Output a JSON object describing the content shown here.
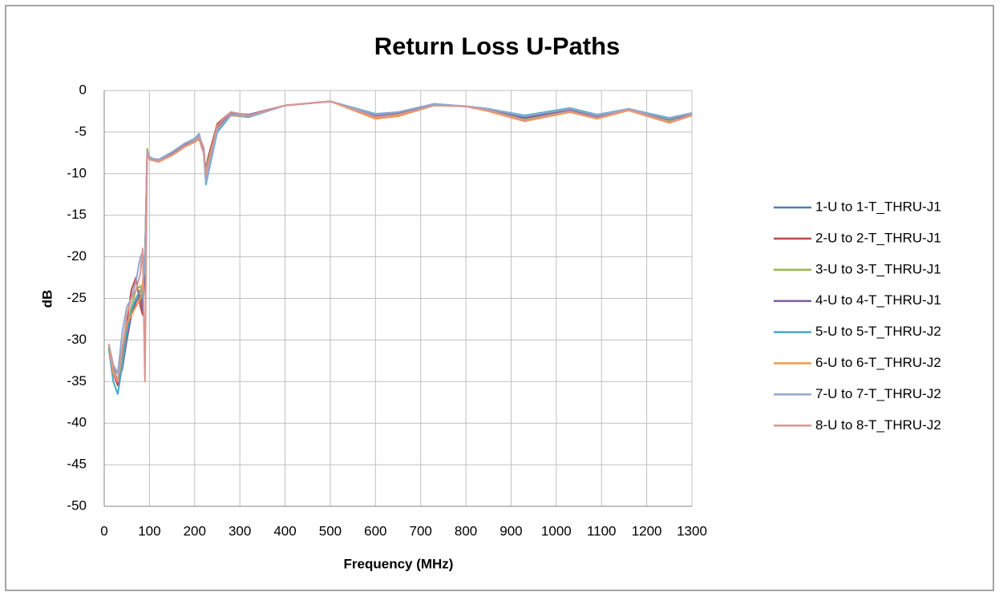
{
  "chart_data": {
    "type": "line",
    "title": "Return Loss U-Paths",
    "x_label": "Frequency (MHz)",
    "y_label": "dB",
    "x": [
      10,
      20,
      30,
      40,
      50,
      60,
      70,
      80,
      85,
      90,
      95,
      100,
      120,
      150,
      180,
      200,
      210,
      220,
      225,
      230,
      250,
      280,
      320,
      400,
      500,
      600,
      650,
      730,
      800,
      850,
      930,
      1030,
      1090,
      1160,
      1250,
      1300
    ],
    "series": [
      {
        "name": "1-U to 1-T_THRU-J1",
        "color": "#4a7ebb",
        "values": [
          -30.5,
          -33,
          -35,
          -33,
          -30,
          -27,
          -25,
          -24,
          -26,
          -20,
          -7.5,
          -8,
          -8.5,
          -7.5,
          -6.5,
          -6,
          -5.5,
          -7,
          -10,
          -9,
          -4.5,
          -2.7,
          -2.9,
          -1.8,
          -1.3,
          -2.9,
          -2.6,
          -1.7,
          -1.9,
          -2.2,
          -3.2,
          -2.2,
          -3.1,
          -2.2,
          -3.5,
          -2.8
        ]
      },
      {
        "name": "2-U to 2-T_THRU-J1",
        "color": "#be4b48",
        "values": [
          -31,
          -34,
          -35.5,
          -32,
          -28,
          -24,
          -22.5,
          -26,
          -27,
          -22,
          -7.3,
          -8.2,
          -8.4,
          -7.8,
          -6.7,
          -6.2,
          -5.8,
          -7.5,
          -9.5,
          -8,
          -4,
          -2.6,
          -3,
          -1.8,
          -1.3,
          -3.2,
          -2.9,
          -1.8,
          -1.9,
          -2.4,
          -3.5,
          -2.5,
          -3.3,
          -2.3,
          -3.7,
          -2.9
        ]
      },
      {
        "name": "3-U to 3-T_THRU-J1",
        "color": "#98b954",
        "values": [
          -30.8,
          -33.5,
          -34.8,
          -32.5,
          -29,
          -26,
          -24,
          -23.5,
          -25,
          -21,
          -7,
          -8.1,
          -8.5,
          -7.6,
          -6.6,
          -6.1,
          -5.6,
          -7.2,
          -9.8,
          -8.5,
          -4.3,
          -2.7,
          -3,
          -1.8,
          -1.3,
          -3.1,
          -2.8,
          -1.7,
          -1.9,
          -2.3,
          -3.4,
          -2.4,
          -3.2,
          -2.3,
          -3.6,
          -2.9
        ]
      },
      {
        "name": "4-U to 4-T_THRU-J1",
        "color": "#7d60a0",
        "values": [
          -31,
          -34,
          -35,
          -33.5,
          -30,
          -27,
          -25.5,
          -24.5,
          -26.5,
          -21,
          -7.6,
          -8.1,
          -8.5,
          -7.6,
          -6.5,
          -6,
          -5.5,
          -7,
          -10,
          -9,
          -4.5,
          -2.7,
          -2.9,
          -1.8,
          -1.3,
          -3,
          -2.7,
          -1.7,
          -1.9,
          -2.2,
          -3.3,
          -2.3,
          -3.1,
          -2.2,
          -3.5,
          -2.8
        ]
      },
      {
        "name": "5-U to 5-T_THRU-J2",
        "color": "#46aac5",
        "values": [
          -31,
          -35,
          -36.5,
          -33,
          -29,
          -26.5,
          -25,
          -24,
          -25,
          -20,
          -7.8,
          -8.2,
          -8.4,
          -7.4,
          -6.3,
          -5.8,
          -5.2,
          -7.5,
          -11.3,
          -10,
          -5,
          -3,
          -3.2,
          -1.8,
          -1.3,
          -2.8,
          -2.6,
          -1.6,
          -1.9,
          -2.2,
          -3,
          -2.1,
          -2.9,
          -2.2,
          -3.3,
          -2.7
        ]
      },
      {
        "name": "6-U to 6-T_THRU-J2",
        "color": "#f79646",
        "values": [
          -30.5,
          -34,
          -35,
          -31,
          -28,
          -27,
          -26,
          -25,
          -23,
          -21,
          -7.4,
          -8.3,
          -8.6,
          -7.8,
          -6.7,
          -6.2,
          -5.7,
          -7.3,
          -10.5,
          -9.5,
          -4.6,
          -3,
          -3.1,
          -1.8,
          -1.3,
          -3.4,
          -3.1,
          -1.8,
          -1.9,
          -2.5,
          -3.7,
          -2.6,
          -3.4,
          -2.4,
          -3.9,
          -3
        ]
      },
      {
        "name": "7-U to 7-T_THRU-J2",
        "color": "#92a9cf",
        "values": [
          -30.5,
          -33,
          -34,
          -29,
          -26,
          -25,
          -23,
          -20,
          -19.5,
          -22,
          -7.2,
          -8.1,
          -8.3,
          -7.4,
          -6.3,
          -5.9,
          -5.3,
          -7.4,
          -11,
          -9.8,
          -4.8,
          -2.9,
          -3.1,
          -1.8,
          -1.3,
          -2.9,
          -2.6,
          -1.6,
          -1.9,
          -2.2,
          -3.1,
          -2.2,
          -3,
          -2.2,
          -3.4,
          -2.7
        ]
      },
      {
        "name": "8-U to 8-T_THRU-J2",
        "color": "#d99694",
        "values": [
          -30.5,
          -33.5,
          -35,
          -31,
          -27,
          -25,
          -24,
          -22,
          -19,
          -35,
          -7.5,
          -8.3,
          -8.5,
          -7.7,
          -6.6,
          -6.1,
          -5.6,
          -7.2,
          -10,
          -8.8,
          -4.2,
          -2.6,
          -3,
          -1.8,
          -1.3,
          -3.2,
          -2.9,
          -1.8,
          -1.9,
          -2.4,
          -3.6,
          -2.5,
          -3.3,
          -2.3,
          -3.8,
          -2.9
        ]
      }
    ],
    "xlim": [
      0,
      1300
    ],
    "xticks": [
      0,
      100,
      200,
      300,
      400,
      500,
      600,
      700,
      800,
      900,
      1000,
      1100,
      1200,
      1300
    ],
    "ylim": [
      -50,
      0
    ],
    "yticks": [
      0,
      -5,
      -10,
      -15,
      -20,
      -25,
      -30,
      -35,
      -40,
      -45,
      -50
    ],
    "grid": true,
    "legend": "right"
  }
}
